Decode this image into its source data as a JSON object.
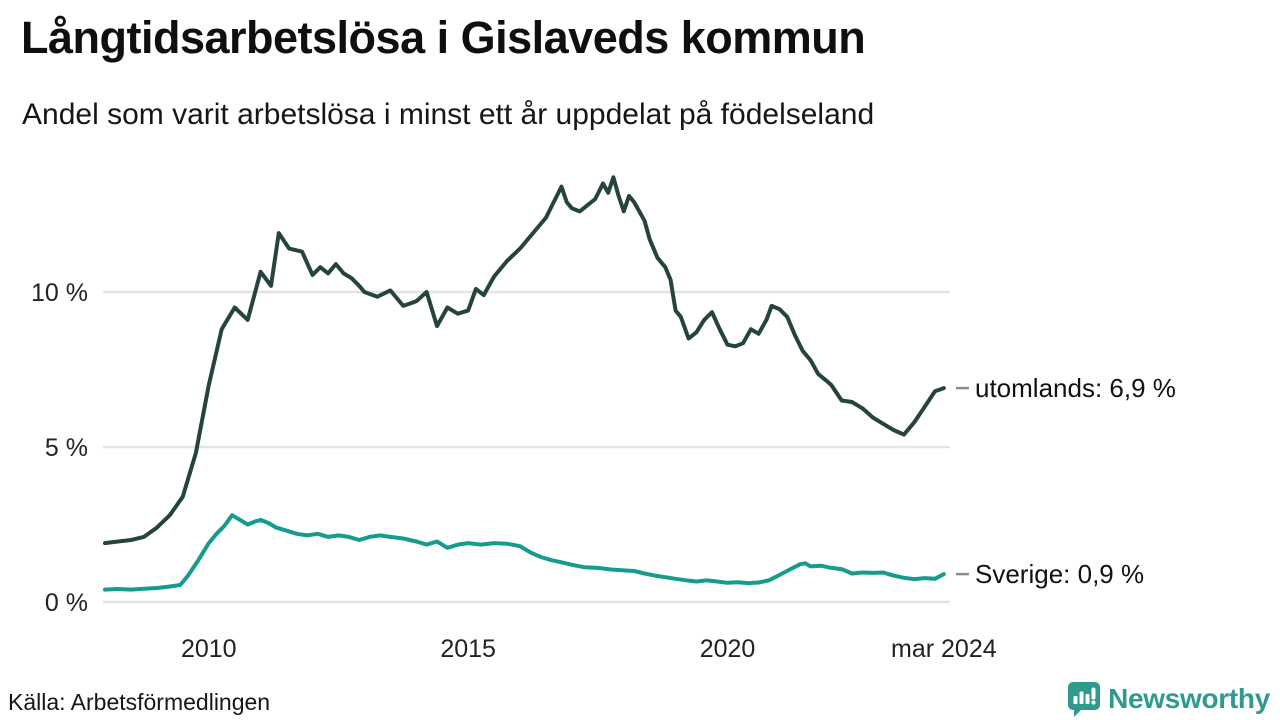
{
  "header": {
    "title": "Långtidsarbetslösa i Gislaveds kommun",
    "subtitle": "Andel som varit arbetslösa i minst ett år uppdelat på födelseland"
  },
  "footer": {
    "source": "Källa: Arbetsförmedlingen",
    "brand": "Newsworthy"
  },
  "colors": {
    "utomlands_line": "#24443d",
    "sverige_line": "#169b8d",
    "gridline": "#e3e3e3",
    "end_dash": "#8d8d8d",
    "brand_teal": "#2f9a8d",
    "text": "#161616"
  },
  "chart_data": {
    "type": "line",
    "title": "Långtidsarbetslösa i Gislaveds kommun",
    "subtitle": "Andel som varit arbetslösa i minst ett år uppdelat på födelseland",
    "unit": "%",
    "grid": "horizontal-only",
    "x_axis": {
      "domain": [
        2008.0,
        2024.25
      ],
      "ticks": [
        {
          "value": 2010,
          "label": "2010"
        },
        {
          "value": 2015,
          "label": "2015"
        },
        {
          "value": 2020,
          "label": "2020"
        },
        {
          "value": 2024.17,
          "label": "mar 2024"
        }
      ]
    },
    "y_axis": {
      "domain": [
        0,
        14.4
      ],
      "ticks": [
        {
          "value": 0,
          "label": "0 %"
        },
        {
          "value": 5,
          "label": "5 %"
        },
        {
          "value": 10,
          "label": "10 %"
        }
      ]
    },
    "series": [
      {
        "id": "utomlands",
        "name": "utomlands",
        "end_label": "utomlands: 6,9 %",
        "end_value": "6,9 %",
        "color": "#24443d",
        "points": [
          [
            2008.0,
            1.9
          ],
          [
            2008.25,
            1.95
          ],
          [
            2008.5,
            2.0
          ],
          [
            2008.75,
            2.1
          ],
          [
            2009.0,
            2.4
          ],
          [
            2009.25,
            2.8
          ],
          [
            2009.5,
            3.4
          ],
          [
            2009.75,
            4.8
          ],
          [
            2010.0,
            7.0
          ],
          [
            2010.25,
            8.8
          ],
          [
            2010.5,
            9.5
          ],
          [
            2010.75,
            9.1
          ],
          [
            2011.0,
            10.65
          ],
          [
            2011.2,
            10.2
          ],
          [
            2011.35,
            11.9
          ],
          [
            2011.55,
            11.4
          ],
          [
            2011.8,
            11.3
          ],
          [
            2012.0,
            10.55
          ],
          [
            2012.15,
            10.8
          ],
          [
            2012.3,
            10.6
          ],
          [
            2012.45,
            10.9
          ],
          [
            2012.6,
            10.6
          ],
          [
            2012.75,
            10.45
          ],
          [
            2012.9,
            10.2
          ],
          [
            2013.0,
            10.0
          ],
          [
            2013.25,
            9.85
          ],
          [
            2013.5,
            10.05
          ],
          [
            2013.75,
            9.55
          ],
          [
            2014.0,
            9.7
          ],
          [
            2014.2,
            10.0
          ],
          [
            2014.4,
            8.9
          ],
          [
            2014.6,
            9.5
          ],
          [
            2014.8,
            9.3
          ],
          [
            2015.0,
            9.4
          ],
          [
            2015.15,
            10.1
          ],
          [
            2015.3,
            9.9
          ],
          [
            2015.5,
            10.5
          ],
          [
            2015.75,
            11.0
          ],
          [
            2016.0,
            11.4
          ],
          [
            2016.25,
            11.9
          ],
          [
            2016.5,
            12.4
          ],
          [
            2016.65,
            12.9
          ],
          [
            2016.8,
            13.4
          ],
          [
            2016.9,
            12.9
          ],
          [
            2017.0,
            12.7
          ],
          [
            2017.15,
            12.6
          ],
          [
            2017.3,
            12.8
          ],
          [
            2017.45,
            13.0
          ],
          [
            2017.6,
            13.5
          ],
          [
            2017.7,
            13.2
          ],
          [
            2017.8,
            13.7
          ],
          [
            2017.9,
            13.1
          ],
          [
            2018.0,
            12.6
          ],
          [
            2018.1,
            13.1
          ],
          [
            2018.2,
            12.9
          ],
          [
            2018.3,
            12.6
          ],
          [
            2018.4,
            12.3
          ],
          [
            2018.5,
            11.7
          ],
          [
            2018.65,
            11.1
          ],
          [
            2018.8,
            10.8
          ],
          [
            2018.9,
            10.4
          ],
          [
            2019.0,
            9.4
          ],
          [
            2019.1,
            9.2
          ],
          [
            2019.25,
            8.5
          ],
          [
            2019.4,
            8.7
          ],
          [
            2019.55,
            9.1
          ],
          [
            2019.7,
            9.35
          ],
          [
            2019.85,
            8.8
          ],
          [
            2020.0,
            8.3
          ],
          [
            2020.15,
            8.25
          ],
          [
            2020.3,
            8.35
          ],
          [
            2020.45,
            8.8
          ],
          [
            2020.6,
            8.65
          ],
          [
            2020.75,
            9.1
          ],
          [
            2020.85,
            9.55
          ],
          [
            2021.0,
            9.45
          ],
          [
            2021.15,
            9.2
          ],
          [
            2021.3,
            8.6
          ],
          [
            2021.45,
            8.1
          ],
          [
            2021.6,
            7.8
          ],
          [
            2021.75,
            7.35
          ],
          [
            2021.9,
            7.15
          ],
          [
            2022.0,
            7.0
          ],
          [
            2022.2,
            6.5
          ],
          [
            2022.4,
            6.45
          ],
          [
            2022.6,
            6.25
          ],
          [
            2022.8,
            5.95
          ],
          [
            2023.0,
            5.75
          ],
          [
            2023.2,
            5.55
          ],
          [
            2023.4,
            5.4
          ],
          [
            2023.6,
            5.8
          ],
          [
            2023.8,
            6.3
          ],
          [
            2024.0,
            6.8
          ],
          [
            2024.17,
            6.9
          ]
        ]
      },
      {
        "id": "sverige",
        "name": "Sverige",
        "end_label": "Sverige: 0,9 %",
        "end_value": "0,9 %",
        "color": "#169b8d",
        "points": [
          [
            2008.0,
            0.4
          ],
          [
            2008.25,
            0.42
          ],
          [
            2008.5,
            0.4
          ],
          [
            2008.75,
            0.43
          ],
          [
            2009.0,
            0.45
          ],
          [
            2009.25,
            0.5
          ],
          [
            2009.45,
            0.55
          ],
          [
            2009.6,
            0.85
          ],
          [
            2009.8,
            1.35
          ],
          [
            2010.0,
            1.9
          ],
          [
            2010.15,
            2.2
          ],
          [
            2010.3,
            2.45
          ],
          [
            2010.45,
            2.8
          ],
          [
            2010.6,
            2.65
          ],
          [
            2010.75,
            2.5
          ],
          [
            2010.9,
            2.6
          ],
          [
            2011.0,
            2.65
          ],
          [
            2011.15,
            2.55
          ],
          [
            2011.3,
            2.4
          ],
          [
            2011.5,
            2.3
          ],
          [
            2011.7,
            2.2
          ],
          [
            2011.9,
            2.15
          ],
          [
            2012.1,
            2.2
          ],
          [
            2012.3,
            2.1
          ],
          [
            2012.5,
            2.15
          ],
          [
            2012.7,
            2.1
          ],
          [
            2012.9,
            2.0
          ],
          [
            2013.1,
            2.1
          ],
          [
            2013.3,
            2.15
          ],
          [
            2013.5,
            2.1
          ],
          [
            2013.75,
            2.05
          ],
          [
            2014.0,
            1.95
          ],
          [
            2014.2,
            1.85
          ],
          [
            2014.4,
            1.95
          ],
          [
            2014.6,
            1.75
          ],
          [
            2014.8,
            1.85
          ],
          [
            2015.0,
            1.9
          ],
          [
            2015.25,
            1.85
          ],
          [
            2015.5,
            1.9
          ],
          [
            2015.75,
            1.88
          ],
          [
            2016.0,
            1.8
          ],
          [
            2016.2,
            1.6
          ],
          [
            2016.4,
            1.45
          ],
          [
            2016.6,
            1.35
          ],
          [
            2016.8,
            1.28
          ],
          [
            2017.0,
            1.2
          ],
          [
            2017.25,
            1.12
          ],
          [
            2017.5,
            1.1
          ],
          [
            2017.75,
            1.05
          ],
          [
            2018.0,
            1.02
          ],
          [
            2018.2,
            1.0
          ],
          [
            2018.4,
            0.92
          ],
          [
            2018.6,
            0.85
          ],
          [
            2018.8,
            0.8
          ],
          [
            2019.0,
            0.75
          ],
          [
            2019.2,
            0.7
          ],
          [
            2019.4,
            0.66
          ],
          [
            2019.6,
            0.7
          ],
          [
            2019.8,
            0.66
          ],
          [
            2020.0,
            0.62
          ],
          [
            2020.2,
            0.64
          ],
          [
            2020.4,
            0.61
          ],
          [
            2020.6,
            0.63
          ],
          [
            2020.8,
            0.7
          ],
          [
            2021.0,
            0.87
          ],
          [
            2021.2,
            1.05
          ],
          [
            2021.4,
            1.22
          ],
          [
            2021.5,
            1.25
          ],
          [
            2021.6,
            1.15
          ],
          [
            2021.8,
            1.17
          ],
          [
            2022.0,
            1.1
          ],
          [
            2022.2,
            1.06
          ],
          [
            2022.4,
            0.92
          ],
          [
            2022.6,
            0.95
          ],
          [
            2022.8,
            0.94
          ],
          [
            2023.0,
            0.95
          ],
          [
            2023.2,
            0.85
          ],
          [
            2023.4,
            0.78
          ],
          [
            2023.6,
            0.74
          ],
          [
            2023.8,
            0.77
          ],
          [
            2024.0,
            0.75
          ],
          [
            2024.17,
            0.9
          ]
        ]
      }
    ]
  }
}
